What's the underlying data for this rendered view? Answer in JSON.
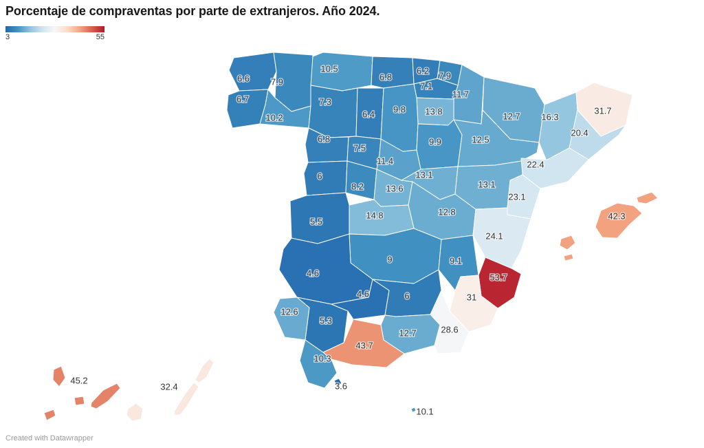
{
  "title": "Porcentaje de compraventas por parte de extranjeros. Año 2024.",
  "legend": {
    "min": 3,
    "max": 55,
    "min_label": "3",
    "max_label": "55",
    "gradient_stops": [
      "#2166ac",
      "#4393c3",
      "#92c5de",
      "#d1e5f0",
      "#f7f7f7",
      "#fddbc7",
      "#f4a582",
      "#d6604d",
      "#b2182b"
    ]
  },
  "style": {
    "border_color": "#ffffff",
    "label_color": "#333333",
    "background": "#ffffff"
  },
  "footer": "Created with Datawrapper",
  "chart_data": {
    "type": "heatmap",
    "subtype": "choropleth-map-spain-provinces",
    "title": "Porcentaje de compraventas por parte de extranjeros. Año 2024.",
    "unit": "%",
    "value_domain": [
      3,
      55
    ],
    "legend_position": "top-left",
    "provinces": [
      {
        "id": "a-coruna",
        "name": "A Coruña",
        "value": 6.6
      },
      {
        "id": "lugo",
        "name": "Lugo",
        "value": 7.9
      },
      {
        "id": "pontevedra",
        "name": "Pontevedra",
        "value": 6.7
      },
      {
        "id": "ourense",
        "name": "Ourense",
        "value": 10.2
      },
      {
        "id": "asturias",
        "name": "Asturias",
        "value": 10.5
      },
      {
        "id": "cantabria",
        "name": "Cantabria",
        "value": 6.8
      },
      {
        "id": "bizkaia",
        "name": "Bizkaia",
        "value": 6.2
      },
      {
        "id": "gipuzkoa",
        "name": "Gipuzkoa",
        "value": 7.9
      },
      {
        "id": "alava",
        "name": "Araba/Álava",
        "value": 7.1
      },
      {
        "id": "navarra",
        "name": "Navarra",
        "value": 11.7
      },
      {
        "id": "la-rioja",
        "name": "La Rioja",
        "value": 13.8
      },
      {
        "id": "leon",
        "name": "León",
        "value": 7.3
      },
      {
        "id": "palencia",
        "name": "Palencia",
        "value": 6.4
      },
      {
        "id": "burgos",
        "name": "Burgos",
        "value": 9.8
      },
      {
        "id": "zamora",
        "name": "Zamora",
        "value": 6.8
      },
      {
        "id": "valladolid",
        "name": "Valladolid",
        "value": 7.5
      },
      {
        "id": "soria",
        "name": "Soria",
        "value": 9.9
      },
      {
        "id": "segovia",
        "name": "Segovia",
        "value": 11.4
      },
      {
        "id": "salamanca",
        "name": "Salamanca",
        "value": 6
      },
      {
        "id": "avila",
        "name": "Ávila",
        "value": 8.2
      },
      {
        "id": "madrid",
        "name": "Madrid",
        "value": 13.6
      },
      {
        "id": "guadalajara",
        "name": "Guadalajara",
        "value": 13.1
      },
      {
        "id": "cuenca",
        "name": "Cuenca",
        "value": 12.8
      },
      {
        "id": "toledo",
        "name": "Toledo",
        "value": 14.8
      },
      {
        "id": "ciudad-real",
        "name": "Ciudad Real",
        "value": 9
      },
      {
        "id": "albacete",
        "name": "Albacete",
        "value": 9.1
      },
      {
        "id": "huesca",
        "name": "Huesca",
        "value": 12.7
      },
      {
        "id": "zaragoza",
        "name": "Zaragoza",
        "value": 12.5
      },
      {
        "id": "teruel",
        "name": "Teruel",
        "value": 13.1
      },
      {
        "id": "lleida",
        "name": "Lleida",
        "value": 16.3
      },
      {
        "id": "girona",
        "name": "Girona",
        "value": 31.7
      },
      {
        "id": "barcelona",
        "name": "Barcelona",
        "value": 20.4
      },
      {
        "id": "tarragona",
        "name": "Tarragona",
        "value": 22.4
      },
      {
        "id": "castellon",
        "name": "Castellón",
        "value": 23.1
      },
      {
        "id": "valencia",
        "name": "Valencia",
        "value": 24.1
      },
      {
        "id": "alicante",
        "name": "Alicante",
        "value": 53.7
      },
      {
        "id": "murcia",
        "name": "Murcia",
        "value": 31
      },
      {
        "id": "caceres",
        "name": "Cáceres",
        "value": 5.5
      },
      {
        "id": "badajoz",
        "name": "Badajoz",
        "value": 4.6
      },
      {
        "id": "huelva",
        "name": "Huelva",
        "value": 12.6
      },
      {
        "id": "sevilla",
        "name": "Sevilla",
        "value": 5.3
      },
      {
        "id": "cordoba",
        "name": "Córdoba",
        "value": 4.6
      },
      {
        "id": "jaen",
        "name": "Jaén",
        "value": 6
      },
      {
        "id": "granada",
        "name": "Granada",
        "value": 12.7
      },
      {
        "id": "almeria",
        "name": "Almería",
        "value": 28.6
      },
      {
        "id": "malaga",
        "name": "Málaga",
        "value": 43.7
      },
      {
        "id": "cadiz",
        "name": "Cádiz",
        "value": 10.3
      },
      {
        "id": "ceuta",
        "name": "Ceuta",
        "value": 3.6
      },
      {
        "id": "melilla",
        "name": "Melilla",
        "value": 10.1
      },
      {
        "id": "illes-balears",
        "name": "Illes Balears",
        "value": 42.3
      },
      {
        "id": "sc-tenerife",
        "name": "Santa Cruz de Tenerife",
        "value": 45.2
      },
      {
        "id": "las-palmas",
        "name": "Las Palmas",
        "value": 32.4
      }
    ]
  }
}
